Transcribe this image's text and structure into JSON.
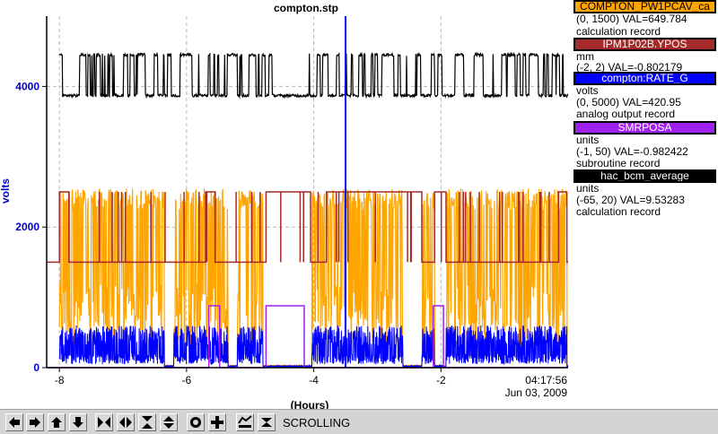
{
  "chart_data": {
    "type": "line",
    "title": "compton.stp",
    "xlabel": "(Hours)",
    "ylabel": "volts",
    "xlim": [
      -8.2,
      0
    ],
    "ylim": [
      0,
      5000
    ],
    "x_ticks": [
      {
        "value": -8,
        "label": "-8"
      },
      {
        "value": -6,
        "label": "-6"
      },
      {
        "value": -4,
        "label": "-4"
      },
      {
        "value": -2,
        "label": "-2"
      }
    ],
    "y_ticks": [
      {
        "value": 0,
        "label": "0"
      },
      {
        "value": 2000,
        "label": "2000"
      },
      {
        "value": 4000,
        "label": "4000"
      }
    ],
    "end_time": "04:17:56",
    "end_date": "Jun 03, 2009",
    "cursor_x": -3.5,
    "grid": true,
    "series": [
      {
        "name": "COMPTON_PW1PCAV_ca",
        "color": "#ffa500",
        "range": [
          0,
          1500
        ],
        "kind": "orange"
      },
      {
        "name": "IPM1P02B.YPOS",
        "color": "#a52a2a",
        "range": [
          -2,
          2
        ],
        "kind": "brown"
      },
      {
        "name": "compton:RATE_G",
        "color": "#0000ff",
        "range": [
          0,
          5000
        ],
        "kind": "blue"
      },
      {
        "name": "SMRPOSA",
        "color": "#a020f0",
        "range": [
          -1,
          50
        ],
        "kind": "purple"
      },
      {
        "name": "hac_bcm_average",
        "color": "#000000",
        "range": [
          -65,
          20
        ],
        "kind": "black"
      }
    ]
  },
  "legend": [
    {
      "name": "COMPTON_PW1PCAV_ca",
      "color": "#ffa500",
      "units": "",
      "range_val": "(0, 1500) VAL=649.784",
      "record": "calculation record"
    },
    {
      "name": "IPM1P02B.YPOS",
      "color": "#a52a2a",
      "units": "mm",
      "range_val": "(-2, 2) VAL=-0.802179",
      "record": ""
    },
    {
      "name": "compton:RATE_G",
      "color": "#0000ff",
      "units": "volts",
      "range_val": "(0, 5000) VAL=420.95",
      "record": "analog output record"
    },
    {
      "name": "SMRPOSA",
      "color": "#a020f0",
      "units": "units",
      "range_val": "(-1, 50) VAL=-0.982422",
      "record": "subroutine record"
    },
    {
      "name": "hac_bcm_average",
      "color": "#000000",
      "units": "units",
      "range_val": "(-65, 20) VAL=9.53283",
      "record": "calculation record"
    }
  ],
  "toolbar": {
    "status": "SCROLLING",
    "buttons": [
      "arrow-left-icon",
      "arrow-right-icon",
      "arrow-up-icon",
      "arrow-down-icon",
      "zoom-in-horizontal-icon",
      "zoom-out-horizontal-icon",
      "zoom-in-vertical-icon",
      "zoom-out-vertical-icon",
      "autoscale-icon",
      "crosshair-icon",
      "toggle-plot-icon"
    ]
  }
}
